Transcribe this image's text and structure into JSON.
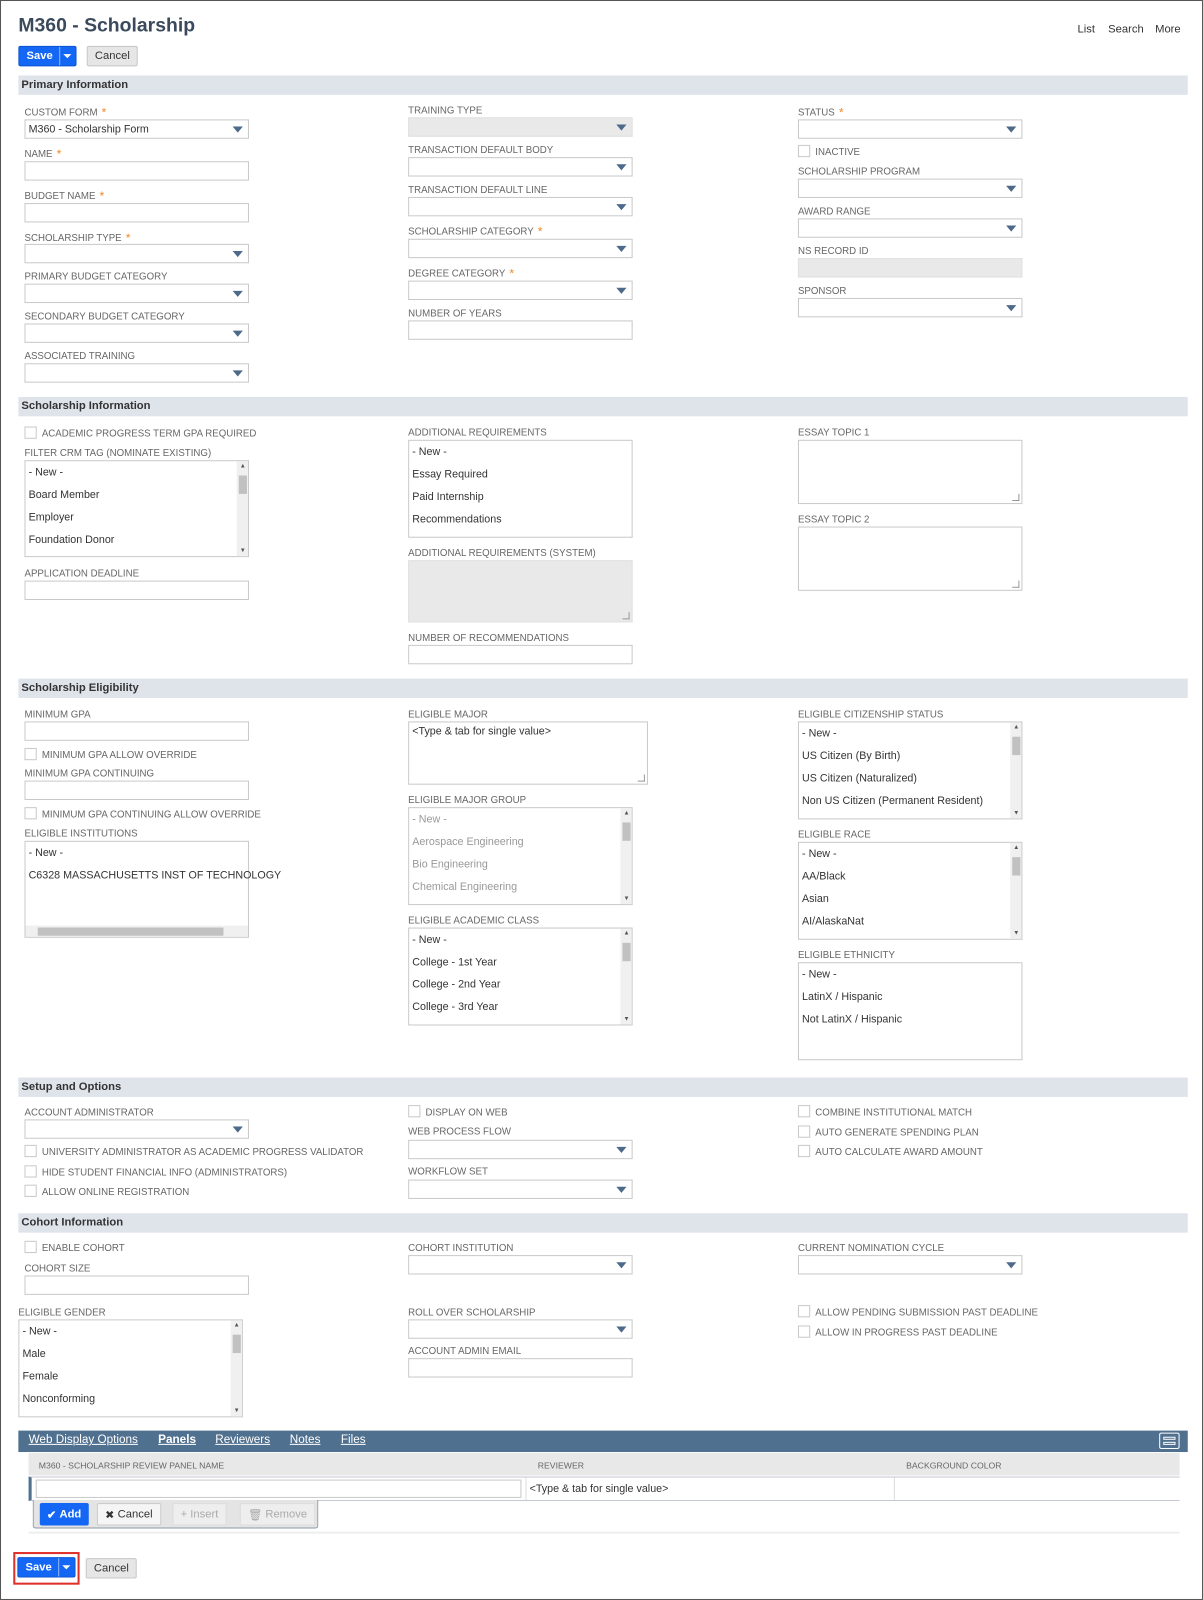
{
  "header": {
    "title": "M360 - Scholarship",
    "links": [
      "List",
      "Search",
      "More"
    ],
    "save_label": "Save",
    "cancel_label": "Cancel"
  },
  "colors": {
    "primary": "#1467f5",
    "section_bg": "#dfe4eb",
    "tabbar": "#50708f",
    "required": "#f08a24"
  },
  "sections": [
    {
      "title": "Primary Information",
      "fields": [
        {
          "id": "custom_form",
          "label": "CUSTOM FORM",
          "required": true,
          "type": "select",
          "value": "M360 - Scholarship Form"
        },
        {
          "id": "name",
          "label": "NAME",
          "required": true,
          "type": "text"
        },
        {
          "id": "budget_name",
          "label": "BUDGET NAME",
          "required": true,
          "type": "text"
        },
        {
          "id": "scholarship_type",
          "label": "SCHOLARSHIP TYPE",
          "required": true,
          "type": "select"
        },
        {
          "id": "primary_budget",
          "label": "PRIMARY BUDGET CATEGORY",
          "type": "select"
        },
        {
          "id": "secondary_budget",
          "label": "SECONDARY BUDGET CATEGORY",
          "type": "select"
        },
        {
          "id": "assoc_training",
          "label": "ASSOCIATED TRAINING",
          "type": "select"
        },
        {
          "id": "training_type",
          "label": "TRAINING TYPE",
          "type": "select",
          "disabled": true
        },
        {
          "id": "txn_body",
          "label": "TRANSACTION DEFAULT BODY",
          "type": "select"
        },
        {
          "id": "txn_line",
          "label": "TRANSACTION DEFAULT LINE",
          "type": "select"
        },
        {
          "id": "sch_category",
          "label": "SCHOLARSHIP CATEGORY",
          "required": true,
          "type": "select"
        },
        {
          "id": "degree_category",
          "label": "DEGREE CATEGORY",
          "required": true,
          "type": "select"
        },
        {
          "id": "num_years",
          "label": "NUMBER OF YEARS",
          "type": "text"
        },
        {
          "id": "status",
          "label": "STATUS",
          "required": true,
          "type": "select"
        },
        {
          "id": "inactive",
          "label": "INACTIVE",
          "type": "checkbox"
        },
        {
          "id": "sch_program",
          "label": "SCHOLARSHIP PROGRAM",
          "type": "select"
        },
        {
          "id": "award_range",
          "label": "AWARD RANGE",
          "type": "select"
        },
        {
          "id": "ns_record_id",
          "label": "NS RECORD ID",
          "type": "text",
          "disabled": true
        },
        {
          "id": "sponsor",
          "label": "SPONSOR",
          "type": "select"
        }
      ]
    },
    {
      "title": "Scholarship Information",
      "fields": [
        {
          "id": "acad_gpa_req",
          "label": "ACADEMIC PROGRESS TERM GPA REQUIRED",
          "type": "checkbox"
        },
        {
          "id": "crm_tag",
          "label": "FILTER CRM TAG (NOMINATE EXISTING)",
          "type": "list",
          "scroll": true,
          "items": [
            "- New -",
            "Board Member",
            "Employer",
            "Foundation Donor"
          ]
        },
        {
          "id": "app_deadline",
          "label": "APPLICATION DEADLINE",
          "type": "text"
        },
        {
          "id": "add_req",
          "label": "ADDITIONAL REQUIREMENTS",
          "type": "list",
          "items": [
            "- New -",
            "Essay Required",
            "Paid Internship",
            "Recommendations"
          ]
        },
        {
          "id": "add_req_sys",
          "label": "ADDITIONAL REQUIREMENTS (SYSTEM)",
          "type": "textarea",
          "disabled": true
        },
        {
          "id": "num_recs",
          "label": "NUMBER OF RECOMMENDATIONS",
          "type": "text"
        },
        {
          "id": "essay1",
          "label": "ESSAY TOPIC 1",
          "type": "textarea"
        },
        {
          "id": "essay2",
          "label": "ESSAY TOPIC 2",
          "type": "textarea"
        }
      ]
    },
    {
      "title": "Scholarship Eligibility",
      "fields": [
        {
          "id": "min_gpa",
          "label": "MINIMUM GPA",
          "type": "text"
        },
        {
          "id": "min_gpa_override",
          "label": "MINIMUM GPA ALLOW OVERRIDE",
          "type": "checkbox"
        },
        {
          "id": "min_gpa_cont",
          "label": "MINIMUM GPA CONTINUING",
          "type": "text"
        },
        {
          "id": "min_gpa_cont_override",
          "label": "MINIMUM GPA CONTINUING ALLOW OVERRIDE",
          "type": "checkbox"
        },
        {
          "id": "elig_inst",
          "label": "ELIGIBLE INSTITUTIONS",
          "type": "list",
          "hscroll": true,
          "items": [
            "- New -",
            "C6328 MASSACHUSETTS INST OF TECHNOLOGY"
          ]
        },
        {
          "id": "elig_major",
          "label": "ELIGIBLE MAJOR",
          "type": "textarea",
          "value": "<Type & tab for single value>"
        },
        {
          "id": "elig_major_group",
          "label": "ELIGIBLE MAJOR GROUP",
          "type": "list",
          "scroll": true,
          "grey": true,
          "items": [
            "- New -",
            "Aerospace Engineering",
            "Bio Engineering",
            "Chemical Engineering"
          ]
        },
        {
          "id": "elig_acad_class",
          "label": "ELIGIBLE ACADEMIC CLASS",
          "type": "list",
          "scroll": true,
          "items": [
            "- New -",
            "College - 1st Year",
            "College - 2nd Year",
            "College - 3rd Year"
          ]
        },
        {
          "id": "elig_citizen",
          "label": "ELIGIBLE CITIZENSHIP STATUS",
          "type": "list",
          "scroll": true,
          "items": [
            "- New -",
            "US Citizen (By Birth)",
            "US Citizen (Naturalized)",
            "Non US Citizen (Permanent Resident)"
          ]
        },
        {
          "id": "elig_race",
          "label": "ELIGIBLE RACE",
          "type": "list",
          "scroll": true,
          "items": [
            "- New -",
            "AA/Black",
            "Asian",
            "AI/AlaskaNat"
          ]
        },
        {
          "id": "elig_ethnicity",
          "label": "ELIGIBLE ETHNICITY",
          "type": "list",
          "items": [
            "- New -",
            "LatinX / Hispanic",
            "Not LatinX / Hispanic"
          ]
        }
      ]
    },
    {
      "title": "Setup and Options",
      "fields": [
        {
          "id": "acct_admin",
          "label": "ACCOUNT ADMINISTRATOR",
          "type": "select"
        },
        {
          "id": "univ_admin",
          "label": "UNIVERSITY ADMINISTRATOR AS ACADEMIC PROGRESS VALIDATOR",
          "type": "checkbox"
        },
        {
          "id": "hide_fin",
          "label": "HIDE STUDENT FINANCIAL INFO (ADMINISTRATORS)",
          "type": "checkbox"
        },
        {
          "id": "online_reg",
          "label": "ALLOW ONLINE REGISTRATION",
          "type": "checkbox"
        },
        {
          "id": "display_web",
          "label": "DISPLAY ON WEB",
          "type": "checkbox"
        },
        {
          "id": "web_flow",
          "label": "WEB PROCESS FLOW",
          "type": "select"
        },
        {
          "id": "workflow_set",
          "label": "WORKFLOW SET",
          "type": "select"
        },
        {
          "id": "combine_match",
          "label": "COMBINE INSTITUTIONAL MATCH",
          "type": "checkbox"
        },
        {
          "id": "auto_spend",
          "label": "AUTO GENERATE SPENDING PLAN",
          "type": "checkbox"
        },
        {
          "id": "auto_award",
          "label": "AUTO CALCULATE AWARD AMOUNT",
          "type": "checkbox"
        }
      ]
    },
    {
      "title": "Cohort Information",
      "fields": [
        {
          "id": "enable_cohort",
          "label": "ENABLE COHORT",
          "type": "checkbox"
        },
        {
          "id": "cohort_size",
          "label": "COHORT SIZE",
          "type": "text"
        },
        {
          "id": "elig_gender",
          "label": "ELIGIBLE GENDER",
          "type": "list",
          "scroll": true,
          "items": [
            "- New -",
            "Male",
            "Female",
            "Nonconforming"
          ]
        },
        {
          "id": "cohort_inst",
          "label": "COHORT INSTITUTION",
          "type": "select"
        },
        {
          "id": "rollover",
          "label": "ROLL OVER SCHOLARSHIP",
          "type": "select"
        },
        {
          "id": "admin_email",
          "label": "ACCOUNT ADMIN EMAIL",
          "type": "text"
        },
        {
          "id": "nom_cycle",
          "label": "CURRENT NOMINATION CYCLE",
          "type": "select"
        },
        {
          "id": "allow_pending",
          "label": "ALLOW PENDING SUBMISSION PAST DEADLINE",
          "type": "checkbox"
        },
        {
          "id": "allow_inprog",
          "label": "ALLOW IN PROGRESS PAST DEADLINE",
          "type": "checkbox"
        }
      ]
    }
  ],
  "subtabs": {
    "tabs": [
      "Web Display Options",
      "Panels",
      "Reviewers",
      "Notes",
      "Files"
    ],
    "active": "Panels",
    "columns": [
      "M360 - SCHOLARSHIP REVIEW PANEL NAME",
      "REVIEWER",
      "BACKGROUND COLOR"
    ],
    "reviewer_placeholder": "<Type & tab for single value>",
    "buttons": {
      "add": "Add",
      "cancel": "Cancel",
      "insert": "Insert",
      "remove": "Remove"
    }
  }
}
